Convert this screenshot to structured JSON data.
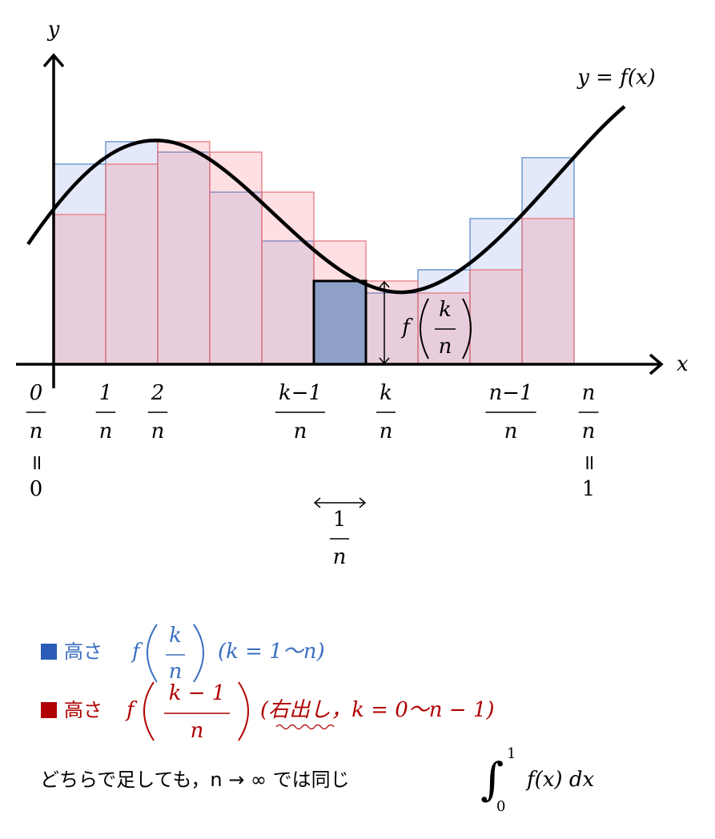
{
  "axes": {
    "x_label": "x",
    "y_label": "y"
  },
  "curve_label": "y = f(x)",
  "ticks": [
    {
      "numerator": "0",
      "denominator": "n"
    },
    {
      "numerator": "1",
      "denominator": "n"
    },
    {
      "numerator": "2",
      "denominator": "n"
    },
    {
      "numerator": "k−1",
      "denominator": "n"
    },
    {
      "numerator": "k",
      "denominator": "n"
    },
    {
      "numerator": "n−1",
      "denominator": "n"
    },
    {
      "numerator": "n",
      "denominator": "n"
    }
  ],
  "equalities": {
    "left_sign": "=",
    "left_value": "0",
    "right_sign": "=",
    "right_value": "1"
  },
  "width_label": {
    "numerator": "1",
    "denominator": "n"
  },
  "height_label": {
    "function": "f",
    "numerator": "k",
    "denominator": "n"
  },
  "legend": [
    {
      "word": "高さ",
      "function": "f",
      "numerator": "k",
      "denominator": "n",
      "note": "(k = 1〜n)"
    },
    {
      "word": "高さ",
      "function": "f",
      "numerator": "k − 1",
      "denominator": "n",
      "note": "(右出し，k = 0〜n − 1)"
    }
  ],
  "conclusion": {
    "text": "どちらで足しても，n → ∞ では同じ",
    "symbol": "∫",
    "lower": "0",
    "upper": "1",
    "integrand": "f(x) dx"
  }
}
